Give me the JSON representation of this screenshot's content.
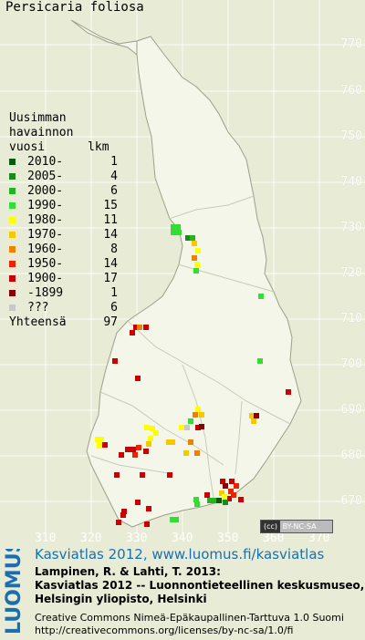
{
  "title": "Persicaria foliosa",
  "y_ticks": [
    "770",
    "760",
    "750",
    "740",
    "730",
    "720",
    "710",
    "700",
    "690",
    "680",
    "670"
  ],
  "x_ticks": [
    "310",
    "320",
    "330",
    "340",
    "350",
    "360",
    "370"
  ],
  "legend": {
    "header": "Uusimman\nhavainnon\nvuosi      lkm",
    "rows": [
      {
        "label": "2010-",
        "count": "1",
        "color": "#0a5a0a"
      },
      {
        "label": "2005-",
        "count": "4",
        "color": "#1a8a1a"
      },
      {
        "label": "2000-",
        "count": "6",
        "color": "#22b422"
      },
      {
        "label": "1990-",
        "count": "15",
        "color": "#33dd33"
      },
      {
        "label": "1980-",
        "count": "11",
        "color": "#ffff00"
      },
      {
        "label": "1970-",
        "count": "14",
        "color": "#f5c800"
      },
      {
        "label": "1960-",
        "count": "8",
        "color": "#f08000"
      },
      {
        "label": "1950-",
        "count": "14",
        "color": "#ee2200"
      },
      {
        "label": "1900-",
        "count": "17",
        "color": "#cc0000"
      },
      {
        "label": "-1899",
        "count": "1",
        "color": "#880000"
      },
      {
        "label": "???",
        "count": "6",
        "color": "#c8c8c8"
      }
    ],
    "total_label": "Yhteensä",
    "total_count": "97"
  },
  "license_badge": "BY-NC-SA",
  "brand": "LUOMUS",
  "footer": {
    "line1": "Kasviatlas 2012, www.luomus.fi/kasviatlas",
    "line2": "Lampinen, R. & Lahti, T. 2013:",
    "line3": "Kasviatlas 2012 -- Luonnontieteellinen keskusmuseo,",
    "line4": "Helsingin yliopisto, Helsinki",
    "line5": "Creative Commons Nimeä-Epäkaupallinen-Tarttuva 1.0 Suomi",
    "line6": "http://creativecommons.org/licenses/by-nc-sa/1.0/fi"
  }
}
